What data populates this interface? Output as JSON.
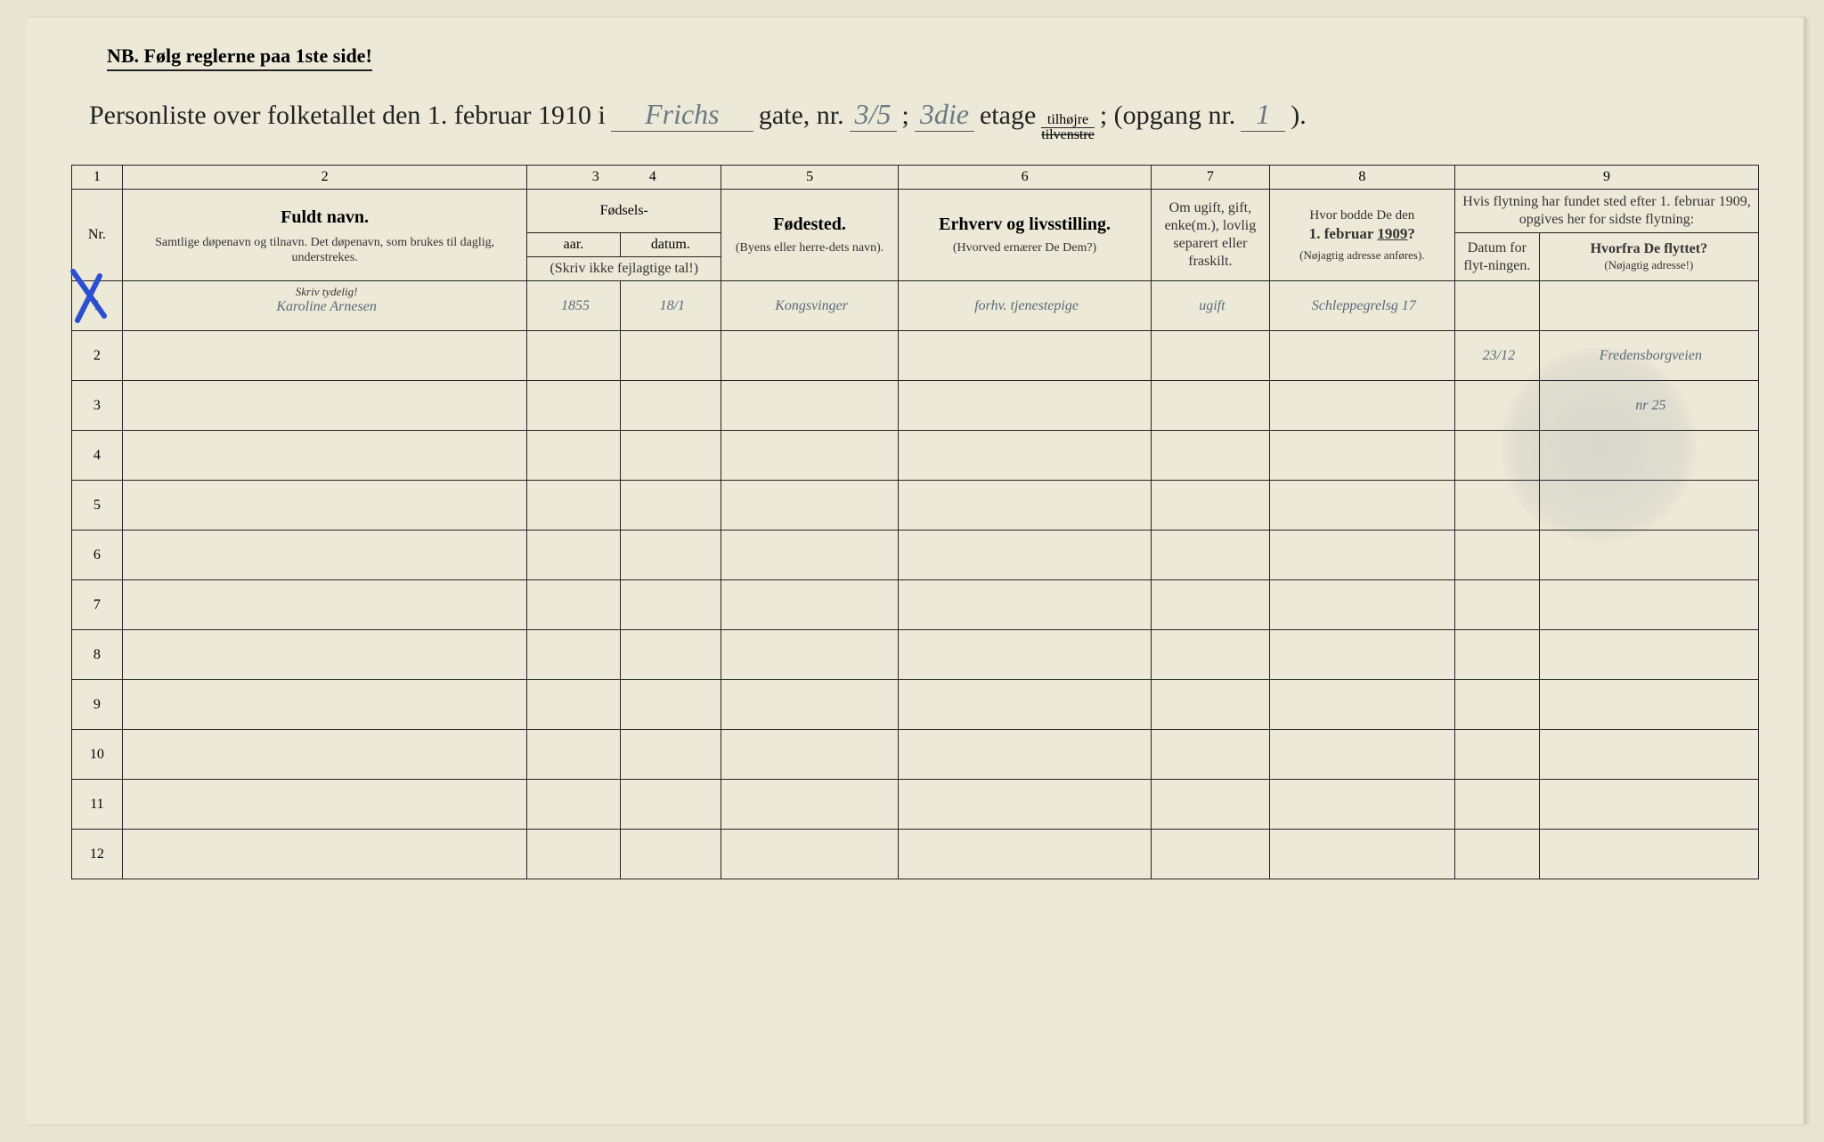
{
  "nb": "NB.  Følg reglerne paa 1ste side!",
  "title": {
    "prefix": "Personliste over folketallet den 1. februar 1910 i",
    "street_hw": "Frichs",
    "gate": "gate, nr.",
    "nr_hw": "3/5",
    "semi": ";",
    "floor_hw": "3die",
    "etage": "etage",
    "side_top": "tilhøjre",
    "side_bot": "tilvenstre",
    "opgang": "; (opgang nr.",
    "opgang_hw": "1",
    "close": ")."
  },
  "colnums": [
    "1",
    "2",
    "3",
    "4",
    "5",
    "6",
    "7",
    "8",
    "9"
  ],
  "headers": {
    "nr": "Nr.",
    "name_main": "Fuldt navn.",
    "name_sub": "Samtlige døpenavn og tilnavn. Det døpenavn, som brukes til daglig, understrekes.",
    "fodsels": "Fødsels-",
    "aar": "aar.",
    "datum": "datum.",
    "aar_sub": "(Skriv ikke fejlagtige tal!)",
    "fodested": "Fødested.",
    "fodested_sub": "(Byens eller herre-dets navn).",
    "erhverv": "Erhverv og livsstilling.",
    "erhverv_sub": "(Hvorved ernærer De Dem?)",
    "marital": "Om ugift, gift, enke(m.), lovlig separert eller fraskilt.",
    "addr1909": "Hvor bodde De den 1. februar 1909?",
    "addr1909_sub": "(Nøjagtig adresse anføres).",
    "move_top": "Hvis flytning har fundet sted efter 1. februar 1909, opgives her for sidste flytning:",
    "move_date": "Datum for flyt-ningen.",
    "move_from": "Hvorfra De flyttet?",
    "move_from_sub": "(Nøjagtig adresse!)",
    "skriv_tydelig": "Skriv tydelig!"
  },
  "rows": [
    {
      "n": "1",
      "name": "Karoline Arnesen",
      "yr": "1855",
      "dt": "18/1",
      "bp": "Kongsvinger",
      "occ": "forhv. tjenestepige",
      "ms": "ugift",
      "a1909": "Schleppegrelsg 17",
      "mdt": "",
      "mfr": ""
    },
    {
      "n": "2",
      "name": "",
      "yr": "",
      "dt": "",
      "bp": "",
      "occ": "",
      "ms": "",
      "a1909": "",
      "mdt": "23/12",
      "mfr": "Fredensborgveien"
    },
    {
      "n": "3",
      "name": "",
      "yr": "",
      "dt": "",
      "bp": "",
      "occ": "",
      "ms": "",
      "a1909": "",
      "mdt": "",
      "mfr": "nr 25"
    },
    {
      "n": "4",
      "name": "",
      "yr": "",
      "dt": "",
      "bp": "",
      "occ": "",
      "ms": "",
      "a1909": "",
      "mdt": "",
      "mfr": ""
    },
    {
      "n": "5",
      "name": "",
      "yr": "",
      "dt": "",
      "bp": "",
      "occ": "",
      "ms": "",
      "a1909": "",
      "mdt": "",
      "mfr": ""
    },
    {
      "n": "6",
      "name": "",
      "yr": "",
      "dt": "",
      "bp": "",
      "occ": "",
      "ms": "",
      "a1909": "",
      "mdt": "",
      "mfr": ""
    },
    {
      "n": "7",
      "name": "",
      "yr": "",
      "dt": "",
      "bp": "",
      "occ": "",
      "ms": "",
      "a1909": "",
      "mdt": "",
      "mfr": ""
    },
    {
      "n": "8",
      "name": "",
      "yr": "",
      "dt": "",
      "bp": "",
      "occ": "",
      "ms": "",
      "a1909": "",
      "mdt": "",
      "mfr": ""
    },
    {
      "n": "9",
      "name": "",
      "yr": "",
      "dt": "",
      "bp": "",
      "occ": "",
      "ms": "",
      "a1909": "",
      "mdt": "",
      "mfr": ""
    },
    {
      "n": "10",
      "name": "",
      "yr": "",
      "dt": "",
      "bp": "",
      "occ": "",
      "ms": "",
      "a1909": "",
      "mdt": "",
      "mfr": ""
    },
    {
      "n": "11",
      "name": "",
      "yr": "",
      "dt": "",
      "bp": "",
      "occ": "",
      "ms": "",
      "a1909": "",
      "mdt": "",
      "mfr": ""
    },
    {
      "n": "12",
      "name": "",
      "yr": "",
      "dt": "",
      "bp": "",
      "occ": "",
      "ms": "",
      "a1909": "",
      "mdt": "",
      "mfr": ""
    }
  ],
  "colors": {
    "paper": "#ede9d8",
    "ink": "#222222",
    "handwriting": "#5a6a78",
    "blue_pencil": "#2a4fd0"
  }
}
